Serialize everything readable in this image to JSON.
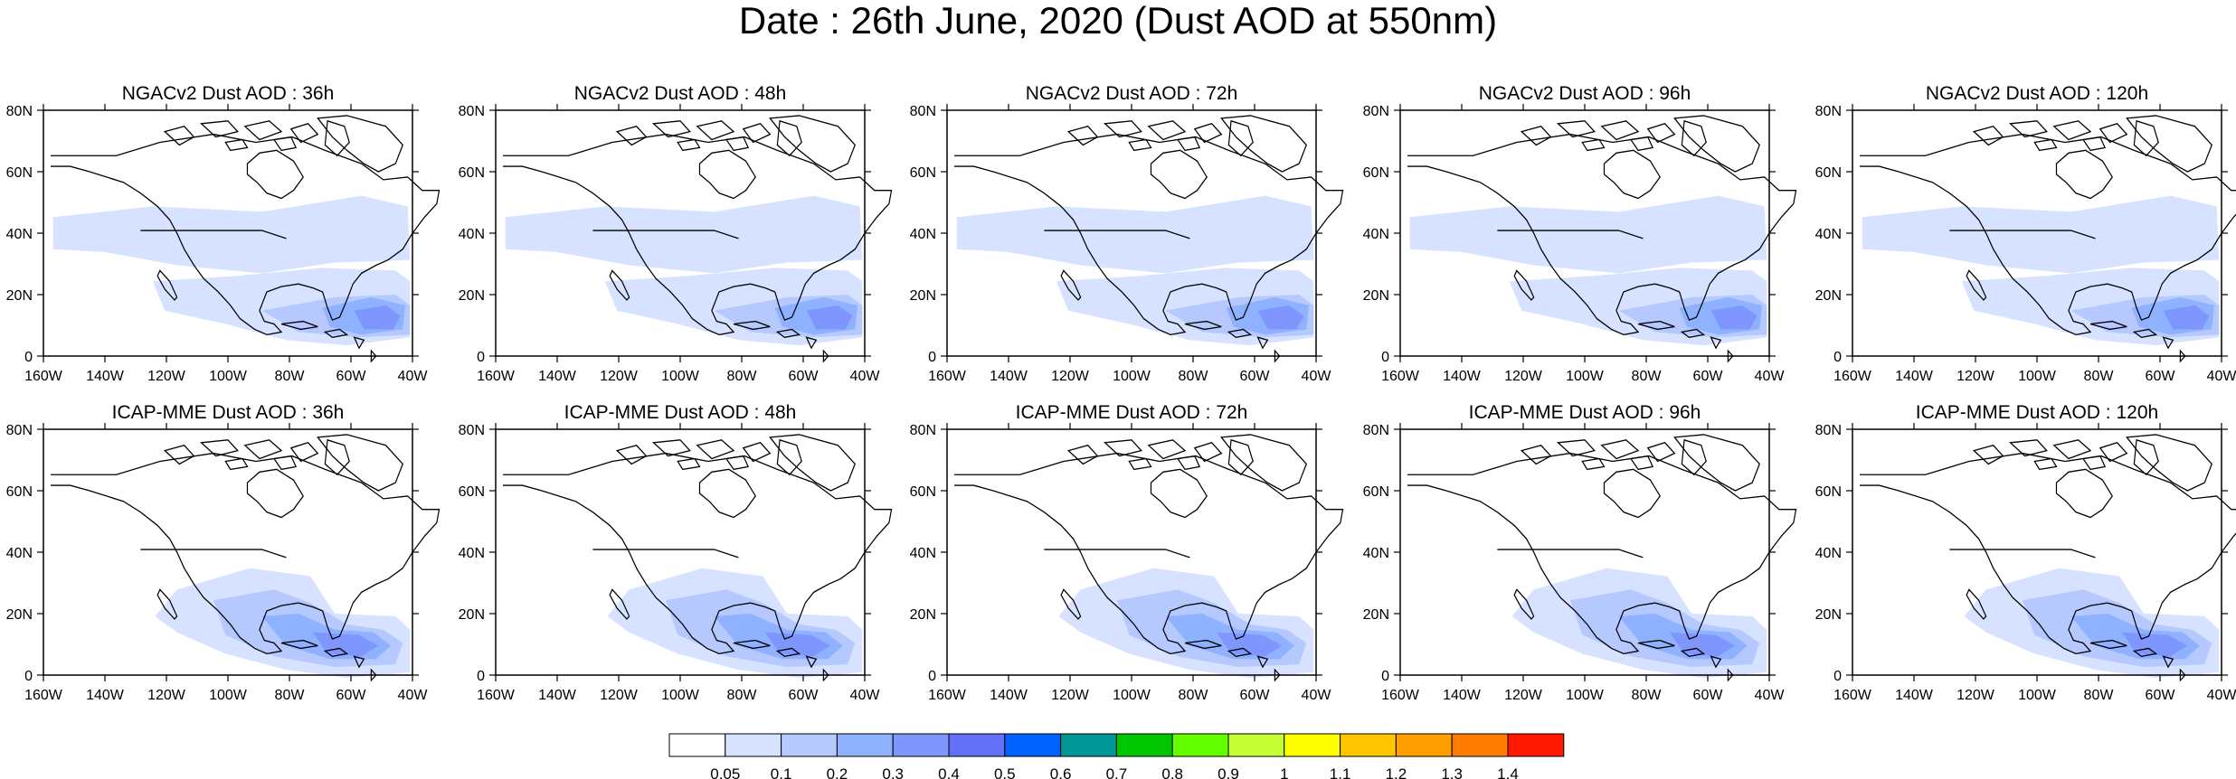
{
  "title": "Date : 26th June, 2020 (Dust AOD at 550nm)",
  "panels": [
    {
      "title": "NGACv2 Dust AOD : 36h",
      "model": "NGACv2",
      "lead": "36h"
    },
    {
      "title": "NGACv2 Dust AOD : 48h",
      "model": "NGACv2",
      "lead": "48h"
    },
    {
      "title": "NGACv2 Dust AOD : 72h",
      "model": "NGACv2",
      "lead": "72h"
    },
    {
      "title": "NGACv2 Dust AOD : 96h",
      "model": "NGACv2",
      "lead": "96h"
    },
    {
      "title": "NGACv2 Dust AOD : 120h",
      "model": "NGACv2",
      "lead": "120h"
    },
    {
      "title": "ICAP-MME Dust AOD : 36h",
      "model": "ICAP-MME",
      "lead": "36h"
    },
    {
      "title": "ICAP-MME Dust AOD : 48h",
      "model": "ICAP-MME",
      "lead": "48h"
    },
    {
      "title": "ICAP-MME Dust AOD : 72h",
      "model": "ICAP-MME",
      "lead": "72h"
    },
    {
      "title": "ICAP-MME Dust AOD : 96h",
      "model": "ICAP-MME",
      "lead": "96h"
    },
    {
      "title": "ICAP-MME Dust AOD : 120h",
      "model": "ICAP-MME",
      "lead": "120h"
    }
  ],
  "axes": {
    "lon_ticks": [
      "160W",
      "140W",
      "120W",
      "100W",
      "80W",
      "60W",
      "40W"
    ],
    "lat_ticks": [
      "0",
      "20N",
      "40N",
      "60N",
      "80N"
    ]
  },
  "colorbar": {
    "labels": [
      "0.05",
      "0.1",
      "0.2",
      "0.3",
      "0.4",
      "0.5",
      "0.6",
      "0.7",
      "0.8",
      "0.9",
      "1",
      "1.1",
      "1.2",
      "1.3",
      "1.4"
    ],
    "colors": [
      "#ffffff",
      "#d6e2ff",
      "#b5c9ff",
      "#8eb2ff",
      "#7f96ff",
      "#6370f8",
      "#0062ff",
      "#009696",
      "#00c600",
      "#63ff00",
      "#c6ff33",
      "#ffff00",
      "#ffc600",
      "#ffa000",
      "#ff7c00",
      "#ff1900"
    ]
  }
}
